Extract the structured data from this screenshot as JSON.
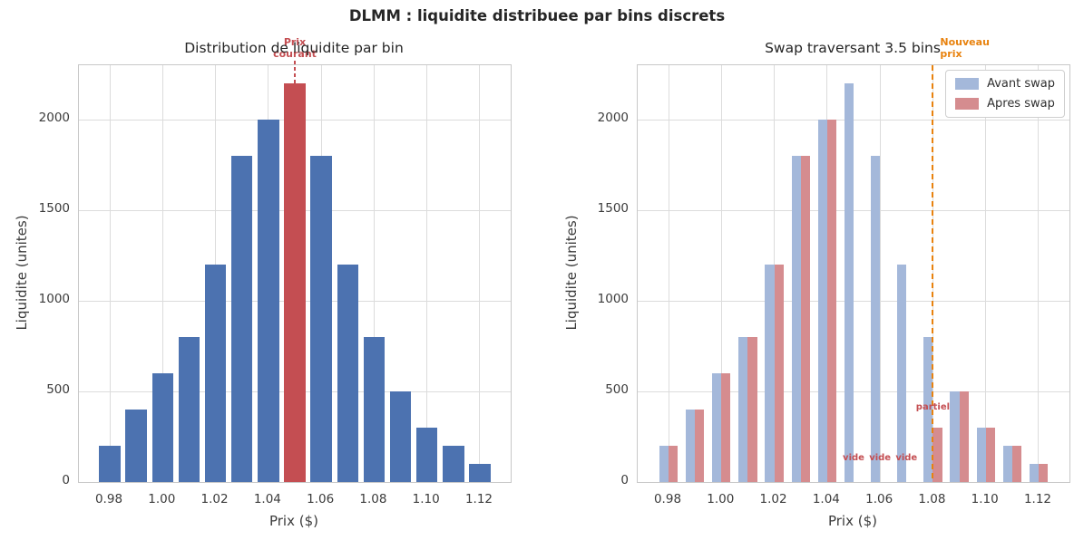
{
  "figure": {
    "title": "DLMM : liquidite distribuee par bins discrets"
  },
  "chart_data": [
    {
      "type": "bar",
      "title": "Distribution de liquidite par bin",
      "xlabel": "Prix ($)",
      "ylabel": "Liquidite (unites)",
      "x": [
        0.98,
        0.99,
        1.0,
        1.01,
        1.02,
        1.03,
        1.04,
        1.05,
        1.06,
        1.07,
        1.08,
        1.09,
        1.1,
        1.11,
        1.12
      ],
      "values": [
        200,
        400,
        600,
        800,
        1200,
        1800,
        2000,
        2200,
        1800,
        1200,
        800,
        500,
        300,
        200,
        100
      ],
      "bar_color": "#4C72B0",
      "highlight_index": 7,
      "highlight_color": "#C44E52",
      "bar_width": 0.008,
      "xlim": [
        0.96833,
        1.13167
      ],
      "ylim": [
        0,
        2300
      ],
      "xticks": [
        0.98,
        1.0,
        1.02,
        1.04,
        1.06,
        1.08,
        1.1,
        1.12
      ],
      "yticks": [
        0,
        500,
        1000,
        1500,
        2000
      ],
      "grid": true,
      "current_price_marker": {
        "x": 1.05,
        "label_lines": [
          "Prix",
          "courant"
        ],
        "color": "#C44E52"
      }
    },
    {
      "type": "grouped_bar",
      "title": "Swap traversant 3.5 bins",
      "xlabel": "Prix ($)",
      "ylabel": "Liquidite (unites)",
      "x": [
        0.98,
        0.99,
        1.0,
        1.01,
        1.02,
        1.03,
        1.04,
        1.05,
        1.06,
        1.07,
        1.08,
        1.09,
        1.1,
        1.11,
        1.12
      ],
      "series": [
        {
          "name": "Avant swap",
          "color": "#A4B8DA",
          "values": [
            200,
            400,
            600,
            800,
            1200,
            1800,
            2000,
            2200,
            1800,
            1200,
            800,
            500,
            300,
            200,
            100
          ]
        },
        {
          "name": "Apres swap",
          "color": "#D58C8F",
          "values": [
            200,
            400,
            600,
            800,
            1200,
            1800,
            2000,
            0,
            0,
            0,
            300,
            500,
            300,
            200,
            100
          ]
        }
      ],
      "bar_width": 0.0035,
      "xlim": [
        0.96833,
        1.13167
      ],
      "ylim": [
        0,
        2300
      ],
      "xticks": [
        0.98,
        1.0,
        1.02,
        1.04,
        1.06,
        1.08,
        1.1,
        1.12
      ],
      "yticks": [
        0,
        500,
        1000,
        1500,
        2000
      ],
      "grid": true,
      "legend_position": "upper right",
      "new_price_marker": {
        "x": 1.08,
        "label_lines": [
          "Nouveau",
          "prix"
        ],
        "color": "#E8820E"
      },
      "bin_annotations": [
        {
          "text": "vide",
          "x": 1.05,
          "y": 130,
          "color": "#C44E52"
        },
        {
          "text": "vide",
          "x": 1.06,
          "y": 130,
          "color": "#C44E52"
        },
        {
          "text": "vide",
          "x": 1.07,
          "y": 130,
          "color": "#C44E52"
        },
        {
          "text": "partiel",
          "x": 1.08,
          "y": 410,
          "color": "#C44E52"
        }
      ]
    }
  ]
}
